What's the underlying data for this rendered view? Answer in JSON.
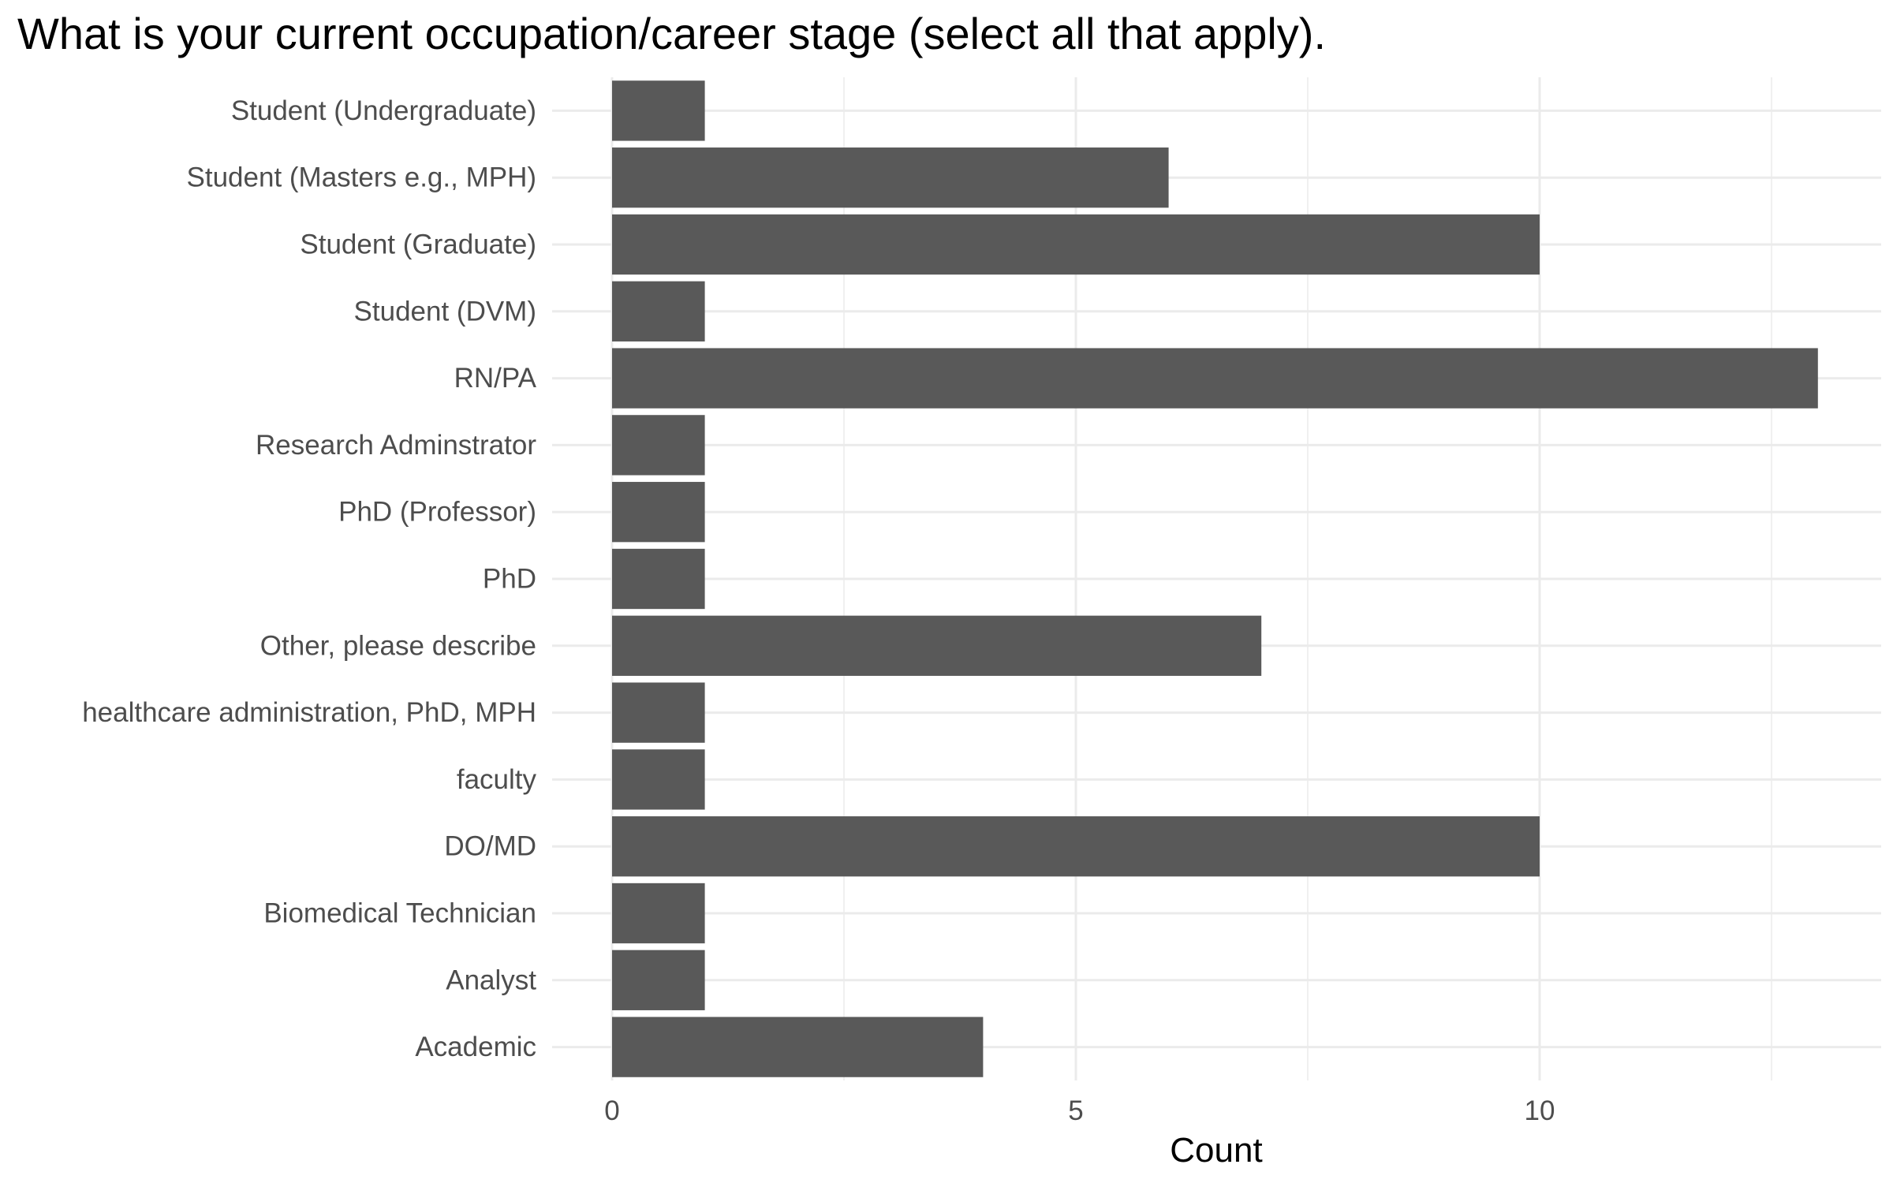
{
  "chart_data": {
    "type": "bar",
    "orientation": "horizontal",
    "title": "What is your current occupation/career stage (select all that apply).",
    "xlabel": "Count",
    "ylabel": "",
    "categories": [
      "Student (Undergraduate)",
      "Student (Masters e.g., MPH)",
      "Student (Graduate)",
      "Student (DVM)",
      "RN/PA",
      "Research Adminstrator",
      "PhD (Professor)",
      "PhD",
      "Other, please describe",
      "healthcare administration, PhD, MPH",
      "faculty",
      "DO/MD",
      "Biomedical Technician",
      "Analyst",
      "Academic"
    ],
    "values": [
      1,
      6,
      10,
      1,
      13,
      1,
      1,
      1,
      7,
      1,
      1,
      10,
      1,
      1,
      4
    ],
    "xlim": [
      0,
      13.6
    ],
    "x_ticks": [
      0,
      5,
      10
    ],
    "x_tick_labels": [
      "0",
      "5",
      "10"
    ],
    "x_minor_ticks": [
      2.5,
      7.5,
      12.5
    ],
    "grid": true,
    "legend": "none",
    "bar_color": "#595959",
    "grid_color": "#ebebeb"
  }
}
